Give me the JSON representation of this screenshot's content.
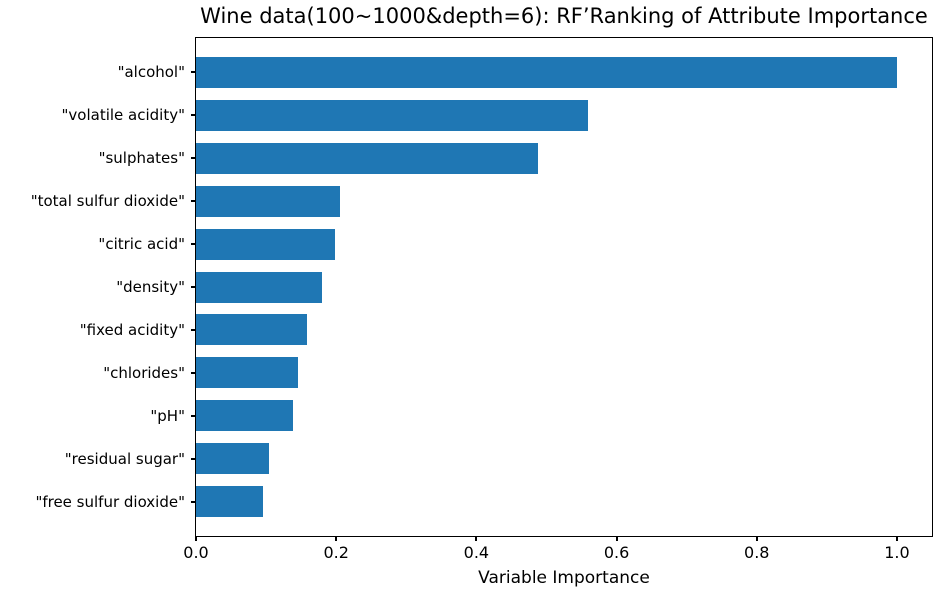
{
  "title": "Wine data(100~1000&depth=6): RF’Ranking of Attribute Importance",
  "chart_data": {
    "type": "bar",
    "orientation": "horizontal",
    "title": "Wine data(100~1000&depth=6): RF’Ranking of Attribute Importance",
    "xlabel": "Variable Importance",
    "ylabel": "",
    "categories": [
      "\"alcohol\"",
      "\"volatile acidity\"",
      "\"sulphates\"",
      "\"total sulfur dioxide\"",
      "\"citric acid\"",
      "\"density\"",
      "\"fixed acidity\"",
      "\"chlorides\"",
      "\"pH\"",
      "\"residual sugar\"",
      "\"free sulfur dioxide\""
    ],
    "values": [
      1.0,
      0.559,
      0.488,
      0.205,
      0.198,
      0.18,
      0.158,
      0.146,
      0.138,
      0.104,
      0.095
    ],
    "x_tick_labels": [
      "0.0",
      "0.2",
      "0.4",
      "0.6",
      "0.8",
      "1.0"
    ],
    "x_tick_values": [
      0.0,
      0.2,
      0.4,
      0.6,
      0.8,
      1.0
    ],
    "xlim": [
      0,
      1.05
    ],
    "bar_color": "#1f77b4",
    "grid": false,
    "legend_position": "none"
  }
}
